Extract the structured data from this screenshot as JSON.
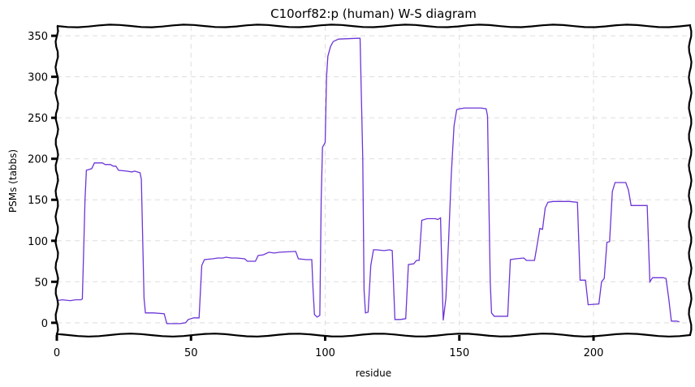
{
  "chart_data": {
    "type": "line",
    "title": "C10orf82:p (human) W-S diagram",
    "xlabel": "residue",
    "ylabel": "PSMs (tabbs)",
    "xlim": [
      0,
      236
    ],
    "ylim": [
      -15,
      362
    ],
    "xticks": [
      0,
      50,
      100,
      150,
      200
    ],
    "yticks": [
      0,
      50,
      100,
      150,
      200,
      250,
      300,
      350
    ],
    "grid": true,
    "series": [
      {
        "color": "#6c35d6",
        "points": [
          [
            0,
            27
          ],
          [
            2,
            28
          ],
          [
            5,
            27
          ],
          [
            7,
            28
          ],
          [
            9,
            28
          ],
          [
            9.5,
            29
          ],
          [
            10,
            90
          ],
          [
            10.5,
            150
          ],
          [
            11,
            186
          ],
          [
            12,
            187
          ],
          [
            13,
            188
          ],
          [
            14,
            195
          ],
          [
            17,
            195
          ],
          [
            18,
            193
          ],
          [
            20,
            193
          ],
          [
            21,
            191
          ],
          [
            22,
            191
          ],
          [
            23,
            186
          ],
          [
            26,
            185
          ],
          [
            28,
            184
          ],
          [
            29,
            185
          ],
          [
            31,
            183
          ],
          [
            31.5,
            175
          ],
          [
            32,
            100
          ],
          [
            32.5,
            30
          ],
          [
            33,
            12
          ],
          [
            36,
            12
          ],
          [
            40,
            11
          ],
          [
            41,
            -1
          ],
          [
            46,
            -1
          ],
          [
            48,
            0
          ],
          [
            49,
            4
          ],
          [
            51,
            6
          ],
          [
            53,
            6
          ],
          [
            54,
            70
          ],
          [
            55,
            77
          ],
          [
            58,
            78
          ],
          [
            60,
            79
          ],
          [
            62,
            79
          ],
          [
            63,
            80
          ],
          [
            65,
            79
          ],
          [
            67,
            79
          ],
          [
            70,
            78
          ],
          [
            71,
            75
          ],
          [
            74,
            75
          ],
          [
            75,
            82
          ],
          [
            77,
            83
          ],
          [
            79,
            86
          ],
          [
            81,
            85
          ],
          [
            83,
            86
          ],
          [
            89,
            87
          ],
          [
            90,
            78
          ],
          [
            93,
            77
          ],
          [
            95,
            77
          ],
          [
            95.5,
            40
          ],
          [
            96,
            10
          ],
          [
            97,
            7
          ],
          [
            98,
            9
          ],
          [
            98.5,
            150
          ],
          [
            99,
            214
          ],
          [
            100,
            220
          ],
          [
            100.5,
            300
          ],
          [
            101,
            325
          ],
          [
            102,
            337
          ],
          [
            103,
            343
          ],
          [
            105,
            346
          ],
          [
            112,
            347
          ],
          [
            113,
            347
          ],
          [
            114,
            200
          ],
          [
            114.5,
            40
          ],
          [
            115,
            12
          ],
          [
            116,
            13
          ],
          [
            117,
            70
          ],
          [
            118,
            89
          ],
          [
            119,
            89
          ],
          [
            122,
            88
          ],
          [
            124,
            89
          ],
          [
            125,
            88
          ],
          [
            126,
            4
          ],
          [
            128,
            4
          ],
          [
            130,
            5
          ],
          [
            131,
            71
          ],
          [
            133,
            72
          ],
          [
            134,
            76
          ],
          [
            135,
            76
          ],
          [
            136,
            125
          ],
          [
            138,
            127
          ],
          [
            141,
            127
          ],
          [
            142,
            126
          ],
          [
            143,
            128
          ],
          [
            143.5,
            60
          ],
          [
            144,
            3
          ],
          [
            145,
            30
          ],
          [
            146,
            100
          ],
          [
            147,
            180
          ],
          [
            148,
            240
          ],
          [
            149,
            260
          ],
          [
            150,
            261
          ],
          [
            152,
            262
          ],
          [
            158,
            262
          ],
          [
            160,
            261
          ],
          [
            160.5,
            252
          ],
          [
            161,
            150
          ],
          [
            161.5,
            50
          ],
          [
            162,
            12
          ],
          [
            163,
            8
          ],
          [
            166,
            8
          ],
          [
            168,
            8
          ],
          [
            169,
            77
          ],
          [
            171,
            78
          ],
          [
            174,
            79
          ],
          [
            175,
            76
          ],
          [
            178,
            76
          ],
          [
            179,
            95
          ],
          [
            180,
            115
          ],
          [
            181,
            114
          ],
          [
            182,
            140
          ],
          [
            183,
            147
          ],
          [
            185,
            148
          ],
          [
            191,
            148
          ],
          [
            194,
            147
          ],
          [
            195,
            52
          ],
          [
            197,
            52
          ],
          [
            198,
            22
          ],
          [
            202,
            23
          ],
          [
            203,
            50
          ],
          [
            204,
            54
          ],
          [
            205,
            98
          ],
          [
            206,
            99
          ],
          [
            207,
            160
          ],
          [
            208,
            171
          ],
          [
            212,
            171
          ],
          [
            213,
            162
          ],
          [
            214,
            143
          ],
          [
            218,
            143
          ],
          [
            220,
            143
          ],
          [
            221,
            50
          ],
          [
            222,
            55
          ],
          [
            224,
            55
          ],
          [
            226,
            55
          ],
          [
            227,
            54
          ],
          [
            228,
            30
          ],
          [
            229,
            2
          ],
          [
            231,
            2
          ],
          [
            232,
            1
          ]
        ]
      }
    ]
  }
}
